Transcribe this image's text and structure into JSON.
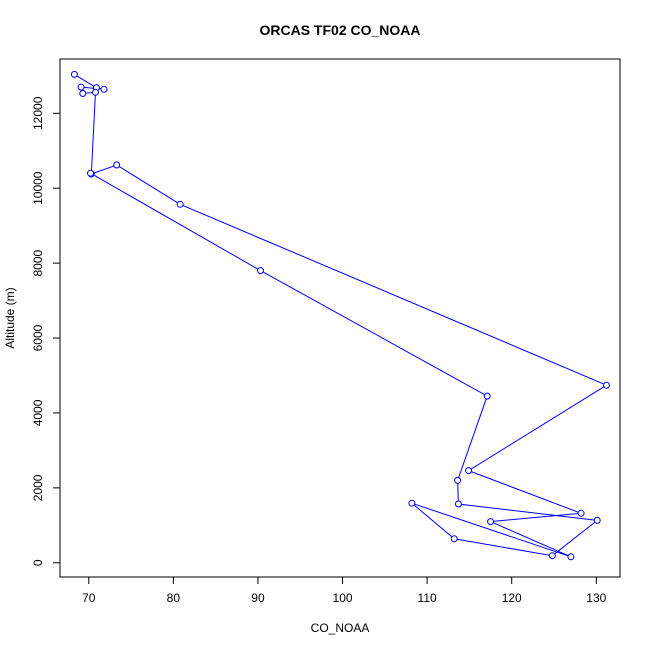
{
  "chart_data": {
    "type": "line",
    "title": "ORCAS TF02 CO_NOAA",
    "xlabel": "CO_NOAA",
    "ylabel": "Altitude (m)",
    "xlim": [
      66.6,
      132.8
    ],
    "ylim": [
      -380,
      13450
    ],
    "xticks": [
      70,
      80,
      90,
      100,
      110,
      120,
      130
    ],
    "yticks": [
      0,
      2000,
      4000,
      6000,
      8000,
      10000,
      12000
    ],
    "grid": false,
    "series": [
      {
        "color": "#0000ff",
        "marker": "open-circle",
        "x": [
          68.3,
          70.9,
          71.8,
          69.1,
          69.3,
          70.8,
          70.3,
          73.3,
          80.8,
          131.2,
          114.9,
          128.2,
          117.5,
          127.0,
          108.2,
          113.2,
          124.8,
          130.1,
          113.7,
          113.6,
          117.1,
          90.3,
          70.2
        ],
        "y": [
          13040,
          12680,
          12640,
          12700,
          12530,
          12560,
          10380,
          10620,
          9570,
          4740,
          2460,
          1320,
          1100,
          160,
          1590,
          640,
          190,
          1130,
          1570,
          2200,
          4450,
          7800,
          10400
        ]
      }
    ]
  }
}
